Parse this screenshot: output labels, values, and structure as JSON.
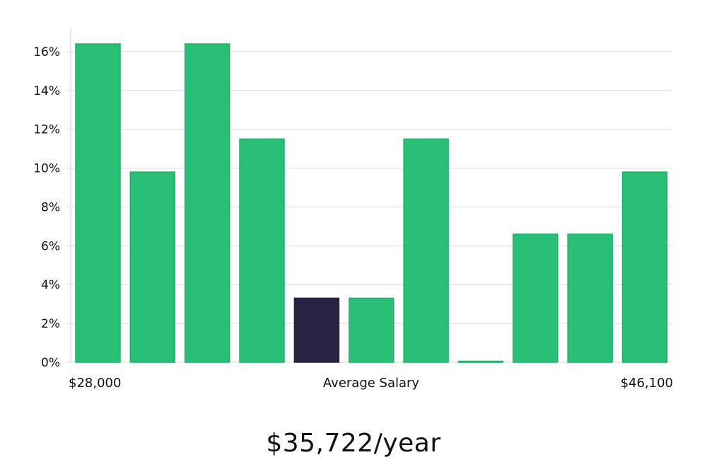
{
  "chart_data": {
    "type": "bar",
    "values": [
      16.4,
      9.8,
      16.4,
      11.5,
      3.3,
      3.3,
      11.5,
      0.0,
      6.6,
      6.6,
      9.8
    ],
    "highlight_index": 4,
    "ylim": [
      0,
      17.2
    ],
    "y_ticks": [
      0,
      2,
      4,
      6,
      8,
      10,
      12,
      14,
      16
    ],
    "y_tick_format": "%",
    "x_min_label": "$28,000",
    "x_mid_label": "Average Salary",
    "x_max_label": "$46,100",
    "grid": true,
    "colors": {
      "bar": "#2abf76",
      "bar_stroke": "#22ad6a",
      "highlight": "#272343",
      "grid": "#d9d9d9",
      "axis": "#cccccc"
    }
  },
  "summary": {
    "average_salary": "$35,722/year"
  }
}
